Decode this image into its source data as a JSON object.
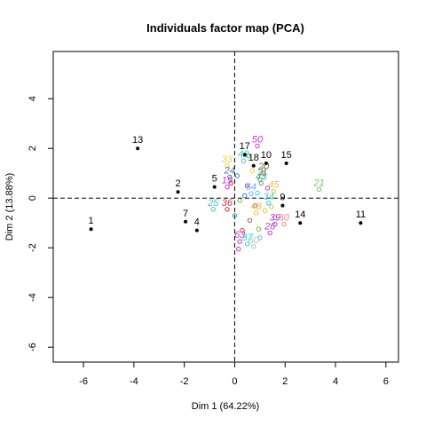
{
  "chart_data": {
    "type": "scatter",
    "title": "Individuals factor map (PCA)",
    "xlabel": "Dim 1 (64.22%)",
    "ylabel": "Dim 2 (13.88%)",
    "xlim": [
      -7.2,
      6.5
    ],
    "ylim": [
      -6.6,
      5.9
    ],
    "xticks": [
      -6,
      -4,
      -2,
      0,
      2,
      4,
      6
    ],
    "yticks": [
      -6,
      -4,
      -2,
      0,
      2,
      4
    ],
    "reference_lines": "dashed lines at x=0 and y=0",
    "active_points": [
      {
        "label": "1",
        "x": -5.7,
        "y": -1.25
      },
      {
        "label": "13",
        "x": -3.85,
        "y": 2.0
      },
      {
        "label": "2",
        "x": -2.25,
        "y": 0.25
      },
      {
        "label": "7",
        "x": -1.95,
        "y": -0.95
      },
      {
        "label": "4",
        "x": -1.5,
        "y": -1.3
      },
      {
        "label": "5",
        "x": -0.8,
        "y": 0.45
      },
      {
        "label": "17",
        "x": 0.4,
        "y": 1.75
      },
      {
        "label": "18",
        "x": 0.75,
        "y": 1.3
      },
      {
        "label": "10",
        "x": 1.25,
        "y": 1.4
      },
      {
        "label": "15",
        "x": 2.05,
        "y": 1.4
      },
      {
        "label": "9",
        "x": 1.9,
        "y": -0.3
      },
      {
        "label": "14",
        "x": 2.6,
        "y": -1.0
      },
      {
        "label": "11",
        "x": 5.0,
        "y": -1.0
      }
    ],
    "supplementary_points": [
      {
        "label": "50",
        "x": 0.9,
        "y": 2.1,
        "color": "#cc33cc"
      },
      {
        "label": "42",
        "x": 0.35,
        "y": 1.5,
        "color": "#33cccc"
      },
      {
        "label": "33",
        "x": -0.3,
        "y": 1.3,
        "color": "#e6d13a"
      },
      {
        "label": "20",
        "x": 1.15,
        "y": 1.0,
        "color": "#8c6d3a"
      },
      {
        "label": "3",
        "x": 1.0,
        "y": 0.75,
        "color": "#6fbf3f"
      },
      {
        "label": "24",
        "x": -0.2,
        "y": 0.85,
        "color": "#3a7abf"
      },
      {
        "label": "43",
        "x": 1.05,
        "y": 0.6,
        "color": "#33aaaa"
      },
      {
        "label": "19",
        "x": -0.3,
        "y": 0.45,
        "color": "#cc33cc"
      },
      {
        "label": "21",
        "x": 3.35,
        "y": 0.35,
        "color": "#66cc66"
      },
      {
        "label": "45",
        "x": 1.55,
        "y": 0.28,
        "color": "#e6c23a"
      },
      {
        "label": "64",
        "x": 0.65,
        "y": 0.18,
        "color": "#66aaff"
      },
      {
        "label": "34",
        "x": 1.35,
        "y": -0.2,
        "color": "#33cccc"
      },
      {
        "label": "25",
        "x": -0.85,
        "y": -0.45,
        "color": "#33cccc"
      },
      {
        "label": "36",
        "x": -0.3,
        "y": -0.45,
        "color": "#cc3333"
      },
      {
        "label": "48",
        "x": 0.85,
        "y": -0.6,
        "color": "#e6c23a"
      },
      {
        "label": "39",
        "x": 1.6,
        "y": -1.05,
        "color": "#cc33cc"
      },
      {
        "label": "30",
        "x": 1.95,
        "y": -1.05,
        "color": "#ff8888"
      },
      {
        "label": "26",
        "x": 1.4,
        "y": -1.4,
        "color": "#cc33cc"
      },
      {
        "label": "63",
        "x": 0.2,
        "y": -1.75,
        "color": "#cc33cc"
      },
      {
        "label": "60",
        "x": 0.75,
        "y": -1.95,
        "color": "#aaccaa"
      },
      {
        "label": "37",
        "x": 0.5,
        "y": -1.85,
        "color": "#33cccc"
      }
    ],
    "cluster_markers": [
      {
        "x": 0.1,
        "y": 0.9,
        "color": "#3a7abf"
      },
      {
        "x": 0.5,
        "y": 0.5,
        "color": "#cc33cc"
      },
      {
        "x": 0.2,
        "y": -0.1,
        "color": "#6fbf3f"
      },
      {
        "x": 0.9,
        "y": 0.2,
        "color": "#33cccc"
      },
      {
        "x": 1.2,
        "y": -0.5,
        "color": "#e6c23a"
      },
      {
        "x": 0.6,
        "y": -0.9,
        "color": "#8c6d3a"
      },
      {
        "x": 0.3,
        "y": -1.3,
        "color": "#cc3333"
      },
      {
        "x": 1.0,
        "y": -1.6,
        "color": "#66aaff"
      },
      {
        "x": 0.0,
        "y": -0.7,
        "color": "#33aaaa"
      },
      {
        "x": 0.7,
        "y": 1.1,
        "color": "#e6d13a"
      },
      {
        "x": 1.3,
        "y": 0.4,
        "color": "#cc33cc"
      },
      {
        "x": 0.4,
        "y": 0.1,
        "color": "#3a7abf"
      },
      {
        "x": 1.6,
        "y": -0.8,
        "color": "#33cccc"
      },
      {
        "x": 0.15,
        "y": -2.05,
        "color": "#cc33cc"
      },
      {
        "x": 0.95,
        "y": -1.25,
        "color": "#6fbf3f"
      },
      {
        "x": 0.55,
        "y": 1.7,
        "color": "#6fbf3f"
      },
      {
        "x": 1.15,
        "y": 1.15,
        "color": "#3a7abf"
      },
      {
        "x": -0.15,
        "y": 0.6,
        "color": "#cc3333"
      },
      {
        "x": 0.8,
        "y": -0.3,
        "color": "#cc33cc"
      },
      {
        "x": 1.45,
        "y": -0.35,
        "color": "#e6c23a"
      }
    ]
  }
}
